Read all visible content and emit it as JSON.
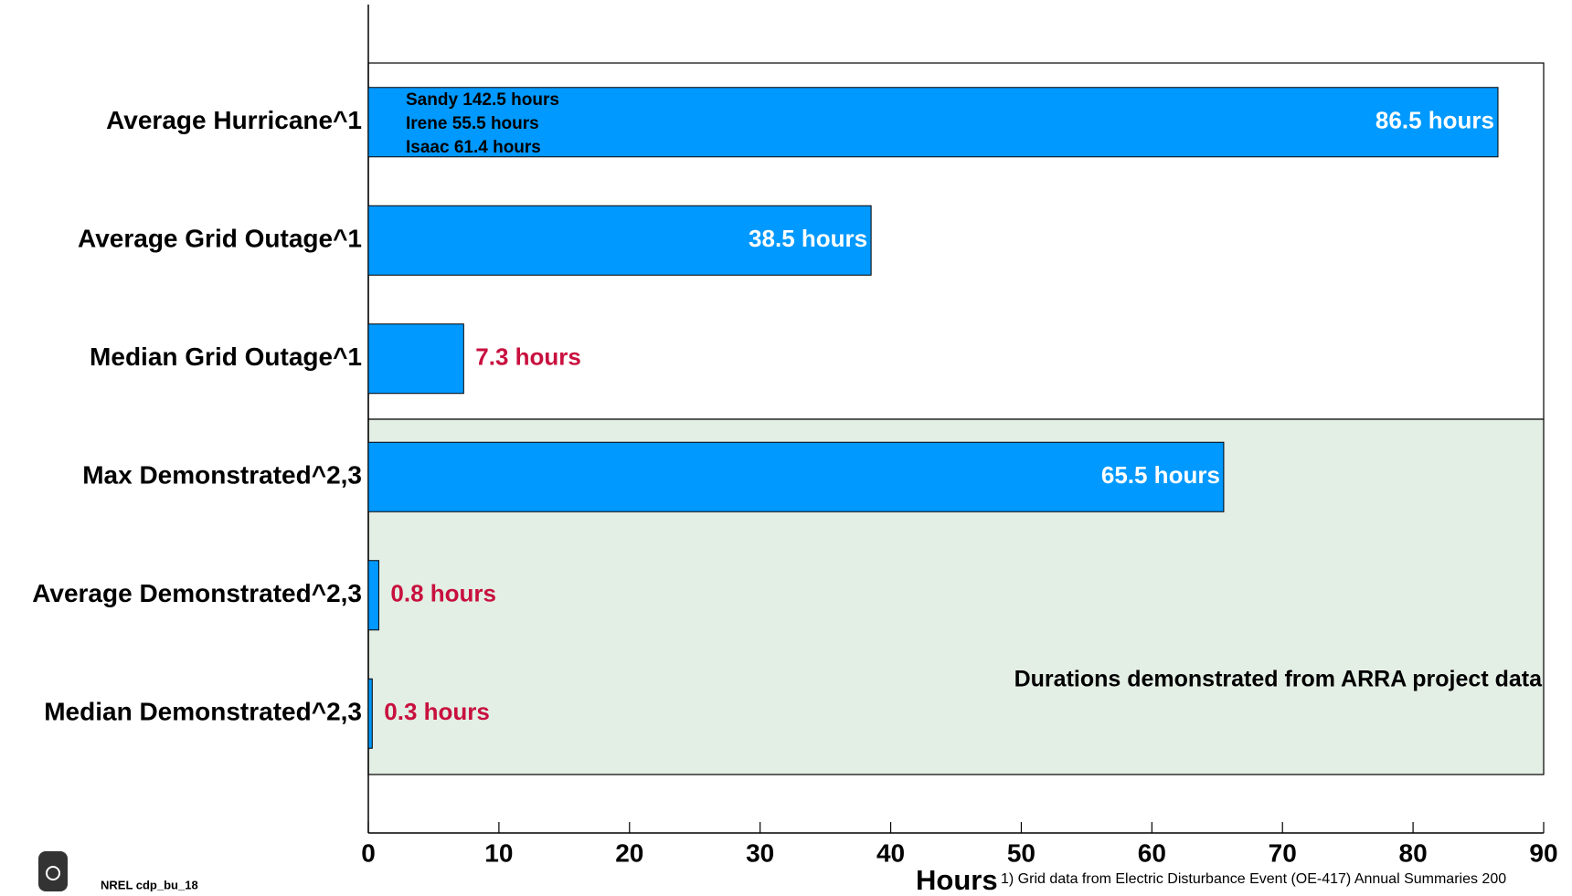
{
  "chart_data": {
    "type": "barh",
    "categories": [
      "Average Hurricane^1",
      "Average Grid Outage^1",
      "Median Grid Outage^1",
      "Max Demonstrated^2,3",
      "Average Demonstrated^2,3",
      "Median Demonstrated^2,3"
    ],
    "values": [
      86.5,
      38.5,
      7.3,
      65.5,
      0.8,
      0.3
    ],
    "value_labels": [
      "86.5 hours",
      "38.5 hours",
      "7.3 hours",
      "65.5 hours",
      "0.8 hours",
      "0.3 hours"
    ],
    "color": "#0099ff",
    "xlim": [
      0,
      90
    ],
    "xticks": [
      0,
      10,
      20,
      30,
      40,
      50,
      60,
      70,
      80,
      90
    ],
    "xlabel": "Hours",
    "annotations": [
      "Sandy 142.5 hours",
      "Irene 55.5 hours",
      "Isaac 61.4 hours"
    ],
    "region_label": "Durations demonstrated from ARRA project data",
    "footnote": "1) Grid data from Electric Disturbance Event (OE-417) Annual Summaries 200",
    "logo_text": "NREL cdp_bu_18"
  }
}
